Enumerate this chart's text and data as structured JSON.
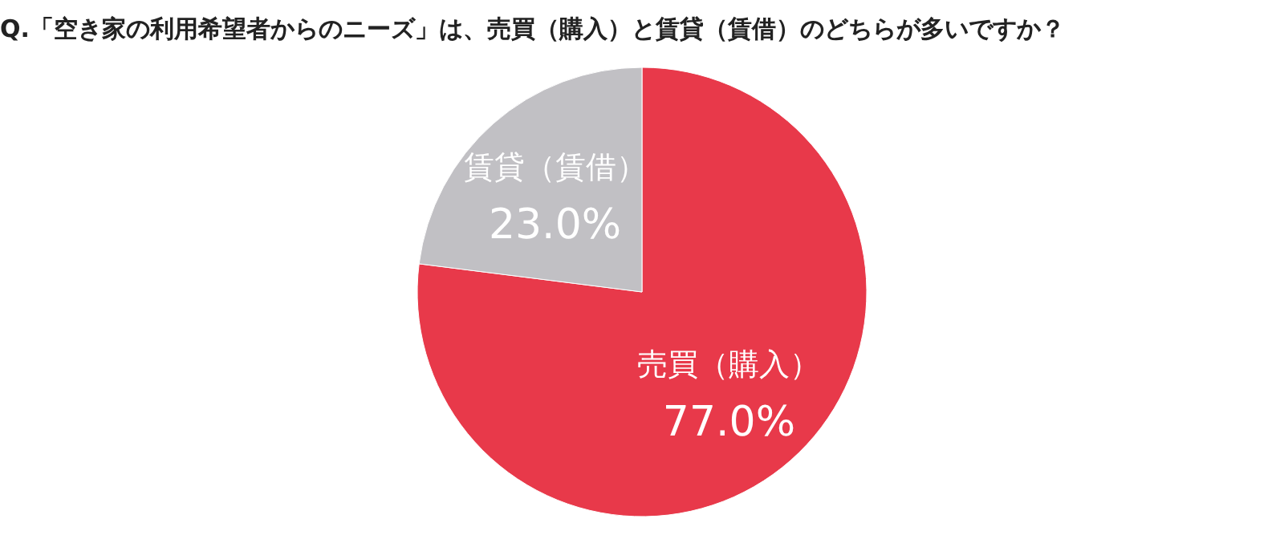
{
  "chart_data": {
    "type": "pie",
    "title": "Q.「空き家の利用希望者からのニーズ」は、売買（購入）と賃貸（賃借）のどちらが多いですか？",
    "categories": [
      "売買（購入）",
      "賃貸（賃借）"
    ],
    "values": [
      77.0,
      23.0
    ],
    "colors": [
      "#e8394a",
      "#c1c0c4"
    ],
    "value_labels": [
      "77.0%",
      "23.0%"
    ]
  }
}
